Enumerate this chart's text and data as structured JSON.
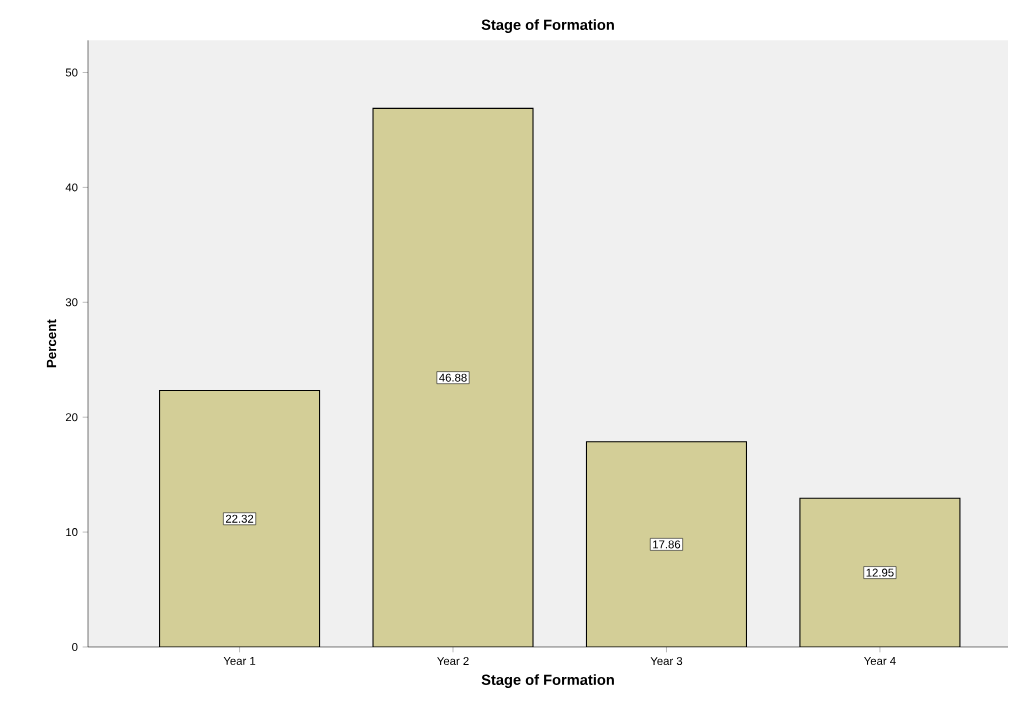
{
  "chart_data": {
    "type": "bar",
    "title": "Stage of Formation",
    "xlabel": "Stage of Formation",
    "ylabel": "Percent",
    "categories": [
      "Year 1",
      "Year 2",
      "Year 3",
      "Year 4"
    ],
    "values": [
      22.32,
      46.88,
      17.86,
      12.95
    ],
    "color": "#d3ce97",
    "ylim": [
      0,
      52.8
    ],
    "yticks": [
      0,
      10,
      20,
      30,
      40,
      50
    ],
    "data_labels": true
  }
}
